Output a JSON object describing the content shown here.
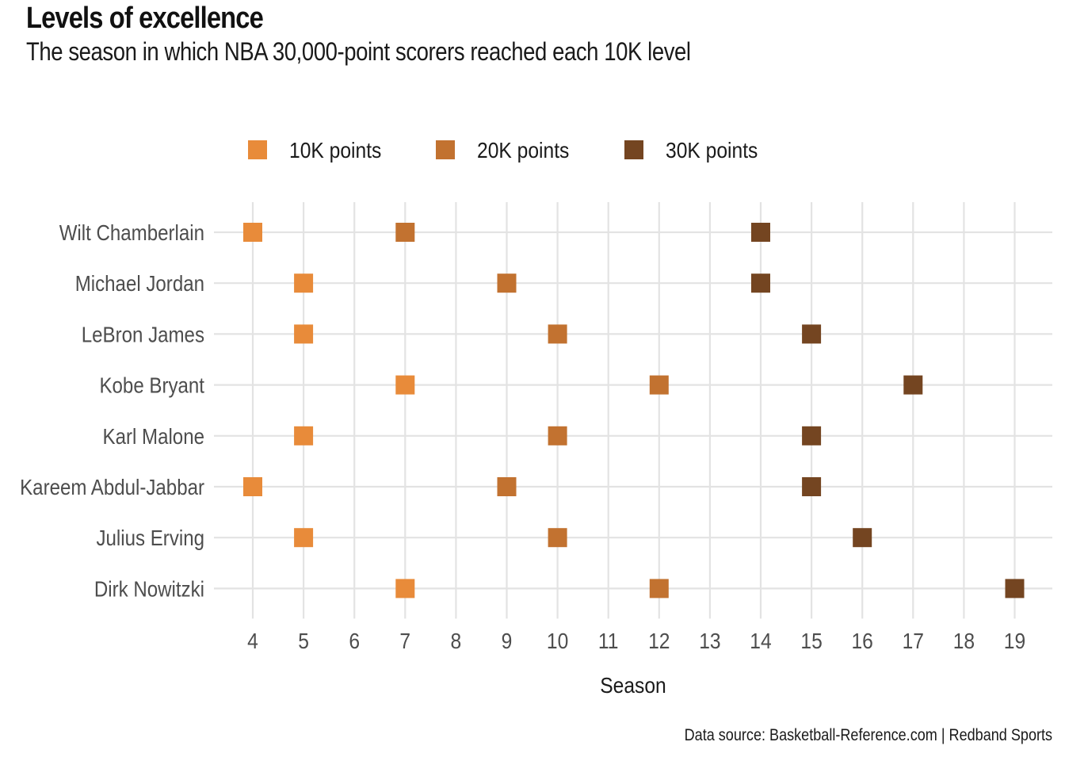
{
  "chart_data": {
    "type": "scatter",
    "title": "Levels of excellence",
    "subtitle": "The season in which NBA 30,000-point scorers reached each 10K level",
    "xlabel": "Season",
    "ylabel": "",
    "xlim": [
      4,
      19
    ],
    "x_ticks": [
      4,
      5,
      6,
      7,
      8,
      9,
      10,
      11,
      12,
      13,
      14,
      15,
      16,
      17,
      18,
      19
    ],
    "categories": [
      "Wilt Chamberlain",
      "Michael Jordan",
      "LeBron James",
      "Kobe Bryant",
      "Karl Malone",
      "Kareem Abdul-Jabbar",
      "Julius Erving",
      "Dirk Nowitzki"
    ],
    "series": [
      {
        "name": "10K points",
        "color": "#E88B3A",
        "values": [
          4,
          5,
          5,
          7,
          5,
          4,
          5,
          7
        ]
      },
      {
        "name": "20K points",
        "color": "#C27230",
        "values": [
          7,
          9,
          10,
          12,
          10,
          9,
          10,
          12
        ]
      },
      {
        "name": "30K points",
        "color": "#744521",
        "values": [
          14,
          14,
          15,
          17,
          15,
          15,
          16,
          19
        ]
      }
    ],
    "legend_position": "top",
    "grid": true,
    "caption": "Data source: Basketball-Reference.com  |  Redband Sports"
  }
}
